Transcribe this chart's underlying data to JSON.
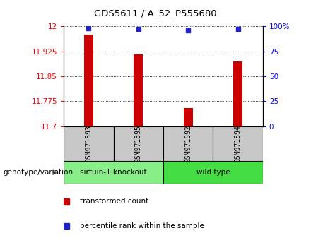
{
  "title": "GDS5611 / A_52_P555680",
  "samples": [
    "GSM971593",
    "GSM971595",
    "GSM971592",
    "GSM971594"
  ],
  "transformed_counts": [
    11.975,
    11.915,
    11.755,
    11.895
  ],
  "percentile_ranks": [
    98,
    97,
    96,
    97
  ],
  "y_min": 11.7,
  "y_max": 12.0,
  "y_ticks": [
    11.7,
    11.775,
    11.85,
    11.925,
    12.0
  ],
  "y_tick_labels": [
    "11.7",
    "11.775",
    "11.85",
    "11.925",
    "12"
  ],
  "right_y_ticks": [
    0,
    25,
    50,
    75,
    100
  ],
  "right_y_tick_labels": [
    "0",
    "25",
    "50",
    "75",
    "100%"
  ],
  "bar_color": "#cc0000",
  "dot_color": "#2222cc",
  "groups": [
    {
      "label": "sirtuin-1 knockout",
      "indices": [
        0,
        1
      ],
      "color": "#88ee88"
    },
    {
      "label": "wild type",
      "indices": [
        2,
        3
      ],
      "color": "#44dd44"
    }
  ],
  "group_label": "genotype/variation",
  "legend_items": [
    {
      "color": "#cc0000",
      "label": "transformed count"
    },
    {
      "color": "#2222cc",
      "label": "percentile rank within the sample"
    }
  ],
  "sample_box_color": "#c8c8c8",
  "bar_width": 0.18
}
